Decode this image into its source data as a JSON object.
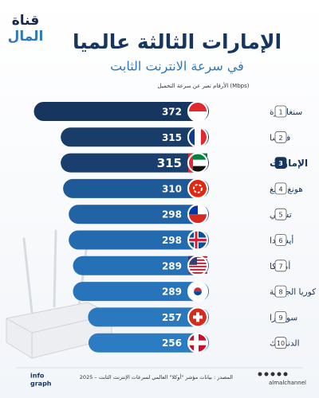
{
  "chart_data": {
    "type": "bar",
    "orientation": "horizontal",
    "logo": {
      "line1": "قناة",
      "line2": "المال"
    },
    "title": "الإمارات الثالثة عالميا",
    "subtitle": "في سرعة الانترنت الثابت",
    "note": "الأرقام تعبر عن سرعة التحميل (Mbps)",
    "ranks": [
      1,
      2,
      3,
      4,
      5,
      6,
      7,
      8,
      9,
      10
    ],
    "categories": [
      "سنغافورة",
      "فرنسا",
      "الإمارات",
      "هونغ كونغ",
      "تشيلي",
      "أيسلندا",
      "أمريكا",
      "كوريا الجنوبية",
      "سويسرا",
      "الدنمارك"
    ],
    "values": [
      372,
      315,
      315,
      310,
      298,
      298,
      289,
      289,
      257,
      256
    ],
    "colors": [
      "#16365f",
      "#183d69",
      "#1a3f6e",
      "#1f5a98",
      "#2263a6",
      "#246aae",
      "#2670b6",
      "#2874ba",
      "#2a78be",
      "#2b7cc2"
    ],
    "highlight": 3,
    "source": "المصدر : بيانات مؤشر \"أوكلا\" العالمي لسرعات الإنترنت الثابت – 2025",
    "footer_left": {
      "line1": "info",
      "line2": "graph"
    },
    "handle": "almalchannel"
  }
}
